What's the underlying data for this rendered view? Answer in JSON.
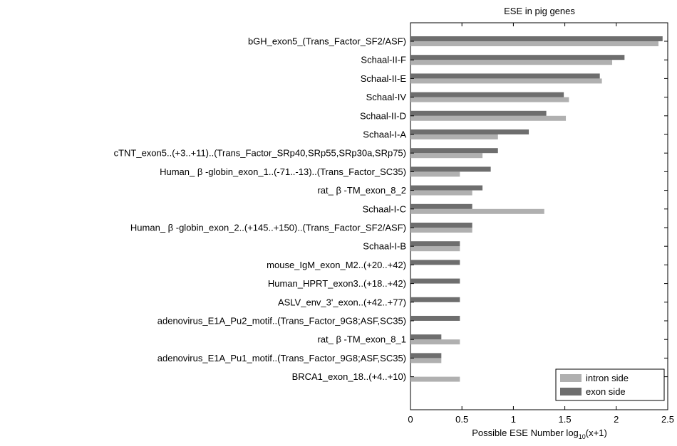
{
  "chart_data": {
    "type": "bar",
    "orientation": "horizontal",
    "title": "ESE in pig genes",
    "xlabel": {
      "main": "Possible ESE Number log",
      "sub": "10",
      "tail": "(x+1)"
    },
    "ylabel": "",
    "xlim": [
      0,
      2.5
    ],
    "xticks": [
      "0",
      "0.5",
      "1",
      "1.5",
      "2",
      "2.5"
    ],
    "legend_position": "bottom-right",
    "categories": [
      "bGH_exon5_(Trans_Factor_SF2/ASF)",
      "Schaal-II-F",
      "Schaal-II-E",
      "Schaal-IV",
      "Schaal-II-D",
      "Schaal-I-A",
      "cTNT_exon5..(+3..+11)..(Trans_Factor_SRp40,SRp55,SRp30a,SRp75)",
      "Human_ β -globin_exon_1..(-71..-13)..(Trans_Factor_SC35)",
      "rat_ β -TM_exon_8_2",
      "Schaal-I-C",
      "Human_ β -globin_exon_2..(+145..+150)..(Trans_Factor_SF2/ASF)",
      "Schaal-I-B",
      "mouse_IgM_exon_M2..(+20..+42)",
      "Human_HPRT_exon3..(+18..+42)",
      "ASLV_env_3'_exon..(+42..+77)",
      "adenovirus_E1A_Pu2_motif..(Trans_Factor_9G8;ASF,SC35)",
      "rat_ β -TM_exon_8_1",
      "adenovirus_E1A_Pu1_motif..(Trans_Factor_9G8;ASF,SC35)",
      "BRCA1_exon_18..(+4..+10)"
    ],
    "series": [
      {
        "name": "exon side",
        "color": "#6e6e6e",
        "values": [
          2.45,
          2.08,
          1.84,
          1.49,
          1.32,
          1.15,
          0.85,
          0.78,
          0.7,
          0.6,
          0.6,
          0.48,
          0.48,
          0.48,
          0.48,
          0.48,
          0.3,
          0.3,
          0.0
        ]
      },
      {
        "name": "intron side",
        "color": "#b0b0b0",
        "values": [
          2.41,
          1.96,
          1.86,
          1.54,
          1.51,
          0.85,
          0.7,
          0.48,
          0.6,
          1.3,
          0.6,
          0.48,
          0.0,
          0.0,
          0.0,
          0.0,
          0.48,
          0.3,
          0.48
        ]
      }
    ]
  }
}
